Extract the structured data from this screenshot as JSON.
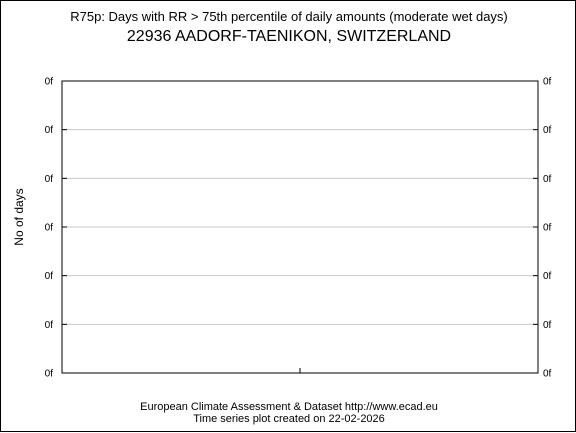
{
  "chart_data": {
    "type": "line",
    "title": "R75p: Days with RR > 75th percentile of daily amounts (moderate wet days)",
    "subtitle": "22936 AADORF-TAENIKON, SWITZERLAND",
    "xlabel": "",
    "ylabel": "No of days",
    "y_ticks": [
      "0f",
      "0f",
      "0f",
      "0f",
      "0f",
      "0f",
      "0f"
    ],
    "series": [],
    "grid": true,
    "legend": "none"
  },
  "footer": {
    "line1": "European Climate Assessment & Dataset  http://www.ecad.eu",
    "line2": "Time series plot created on 22-02-2026"
  }
}
